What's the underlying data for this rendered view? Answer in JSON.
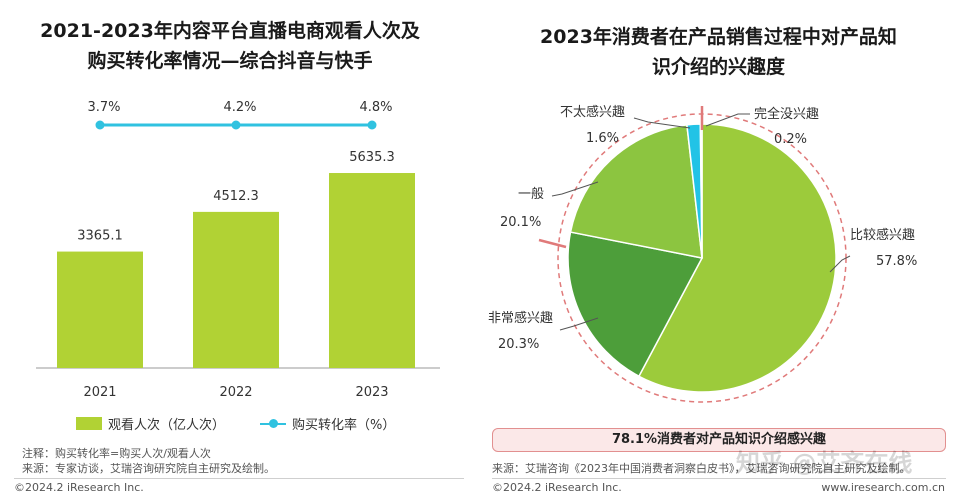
{
  "left": {
    "title_line1": "2021-2023年内容平台直播电商观看人次及",
    "title_line2": "购买转化率情况—综合抖音与快手",
    "legend": {
      "bars_label": "观看人次（亿人次）",
      "line_label": "购买转化率（%）"
    },
    "note": "注释：购买转化率=购买人次/观看人次",
    "source": "来源：专家访谈，艾瑞咨询研究院自主研究及绘制。",
    "footer": "©2024.2 iResearch Inc."
  },
  "right": {
    "title_line1": "2023年消费者在产品销售过程中对产品知",
    "title_line2": "识介绍的兴趣度",
    "callout": "78.1%消费者对产品知识介绍感兴趣",
    "source": "来源：艾瑞咨询《2023年中国消费者洞察白皮书》，艾瑞咨询研究院自主研究及绘制。",
    "footer_left": "©2024.2 iResearch Inc.",
    "footer_right": "www.iresearch.com.cn"
  },
  "watermark": "知乎 @艾齐在线",
  "colors": {
    "bar_green": "#b1d234",
    "line_cyan": "#30c2e0",
    "pie_light": "#9ccb3b",
    "pie_dark": "#4d9e3a",
    "pie_mid": "#8cc540",
    "pie_cyan": "#22c3e6",
    "accent_red": "#e07a7a"
  },
  "chart_data": [
    {
      "type": "bar",
      "title": "2021-2023年内容平台直播电商观看人次及购买转化率情况—综合抖音与快手",
      "categories": [
        "2021",
        "2022",
        "2023"
      ],
      "series": [
        {
          "name": "观看人次（亿人次）",
          "type": "bar",
          "values": [
            3365.1,
            4512.3,
            5635.3
          ]
        },
        {
          "name": "购买转化率（%）",
          "type": "line",
          "values": [
            3.7,
            4.2,
            4.8
          ],
          "value_labels": [
            "3.7%",
            "4.2%",
            "4.8%"
          ]
        }
      ],
      "legend_position": "bottom",
      "grid": false
    },
    {
      "type": "pie",
      "title": "2023年消费者在产品销售过程中对产品知识介绍的兴趣度",
      "slices": [
        {
          "label": "比较感兴趣",
          "value": 57.8,
          "value_label": "57.8%"
        },
        {
          "label": "非常感兴趣",
          "value": 20.3,
          "value_label": "20.3%"
        },
        {
          "label": "一般",
          "value": 20.1,
          "value_label": "20.1%"
        },
        {
          "label": "不太感兴趣",
          "value": 1.6,
          "value_label": "1.6%"
        },
        {
          "label": "完全没兴趣",
          "value": 0.2,
          "value_label": "0.2%"
        }
      ]
    }
  ]
}
